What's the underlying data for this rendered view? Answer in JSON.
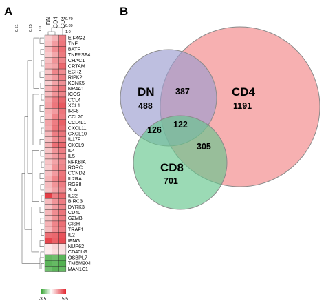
{
  "chart_data": [
    {
      "type": "heatmap",
      "panel_label": "A",
      "columns": [
        "DN",
        "CD4",
        "CD8"
      ],
      "rows": [
        "EIF4G2",
        "TNF",
        "BATF",
        "TNFRSF4",
        "CHAC1",
        "CRTAM",
        "EGR2",
        "RIPK2",
        "KCNK5",
        "NR4A1",
        "ICOS",
        "CCL4",
        "XCL1",
        "IRF8",
        "CCL20",
        "CCL4L1",
        "CXCL11",
        "CXCL10",
        "IL17F",
        "CXCL9",
        "IL4",
        "IL5",
        "NFKBIA",
        "RORC",
        "CCND2",
        "IL2RA",
        "RGS8",
        "SLA",
        "IL22",
        "BIRC3",
        "DYRK3",
        "CD40",
        "GZMB",
        "CISH",
        "TRAF1",
        "IL2",
        "IFNG",
        "NUP62",
        "CD40LG",
        "OSBPL7",
        "TMEM204",
        "MAN1C1"
      ],
      "values": [
        [
          1.0,
          1.6,
          3.0
        ],
        [
          1.2,
          2.2,
          3.2
        ],
        [
          1.4,
          2.6,
          3.4
        ],
        [
          1.1,
          1.9,
          3.1
        ],
        [
          1.3,
          2.4,
          2.8
        ],
        [
          1.6,
          2.0,
          3.6
        ],
        [
          1.2,
          2.8,
          2.6
        ],
        [
          1.5,
          2.2,
          3.0
        ],
        [
          1.0,
          2.0,
          2.5
        ],
        [
          1.6,
          2.6,
          3.2
        ],
        [
          1.4,
          2.4,
          2.8
        ],
        [
          1.8,
          3.0,
          3.6
        ],
        [
          2.0,
          3.2,
          4.0
        ],
        [
          1.6,
          2.2,
          3.2
        ],
        [
          1.4,
          2.8,
          3.0
        ],
        [
          2.0,
          3.0,
          3.8
        ],
        [
          1.8,
          3.2,
          3.4
        ],
        [
          1.5,
          3.0,
          3.2
        ],
        [
          1.3,
          2.6,
          3.0
        ],
        [
          1.6,
          3.4,
          3.6
        ],
        [
          1.2,
          2.4,
          3.0
        ],
        [
          1.4,
          2.2,
          2.8
        ],
        [
          1.2,
          2.0,
          2.6
        ],
        [
          1.0,
          2.4,
          2.8
        ],
        [
          1.3,
          2.2,
          3.2
        ],
        [
          1.6,
          2.8,
          3.4
        ],
        [
          1.4,
          2.4,
          3.0
        ],
        [
          1.2,
          2.0,
          2.6
        ],
        [
          4.8,
          3.0,
          3.6
        ],
        [
          1.4,
          2.4,
          3.0
        ],
        [
          1.2,
          2.2,
          2.8
        ],
        [
          1.5,
          2.6,
          3.2
        ],
        [
          1.3,
          2.4,
          3.0
        ],
        [
          1.6,
          2.8,
          3.4
        ],
        [
          1.4,
          2.6,
          3.0
        ],
        [
          3.4,
          3.6,
          4.2
        ],
        [
          4.6,
          3.8,
          4.4
        ],
        [
          0.4,
          0.8,
          0.6
        ],
        [
          0.3,
          0.6,
          0.5
        ],
        [
          -2.6,
          -2.4,
          -2.8
        ],
        [
          -2.8,
          -2.6,
          -3.0
        ],
        [
          -2.4,
          -2.8,
          -2.6
        ]
      ],
      "color_scale": {
        "min": -3.5,
        "max": 5.5,
        "min_label": "-3.5",
        "max_label": "5.5",
        "low_color": "#3aa637",
        "mid_color": "#ffffff",
        "high_color": "#e2262f"
      },
      "row_dendrogram_ticks": [
        "0.51",
        "0.25",
        "1.0"
      ],
      "column_dendrogram_ticks": [
        "0.70",
        "0.89",
        "1.0"
      ]
    },
    {
      "type": "venn",
      "panel_label": "B",
      "sets": [
        {
          "name": "DN",
          "only": "488",
          "color": "#9b9cd0"
        },
        {
          "name": "CD4",
          "only": "1191",
          "color": "#f6a2a3"
        },
        {
          "name": "CD8",
          "only": "701",
          "color": "#66c68d"
        }
      ],
      "intersections": {
        "DN_CD4": "387",
        "DN_CD8": "126",
        "CD4_CD8": "305",
        "DN_CD4_CD8": "122"
      }
    }
  ]
}
